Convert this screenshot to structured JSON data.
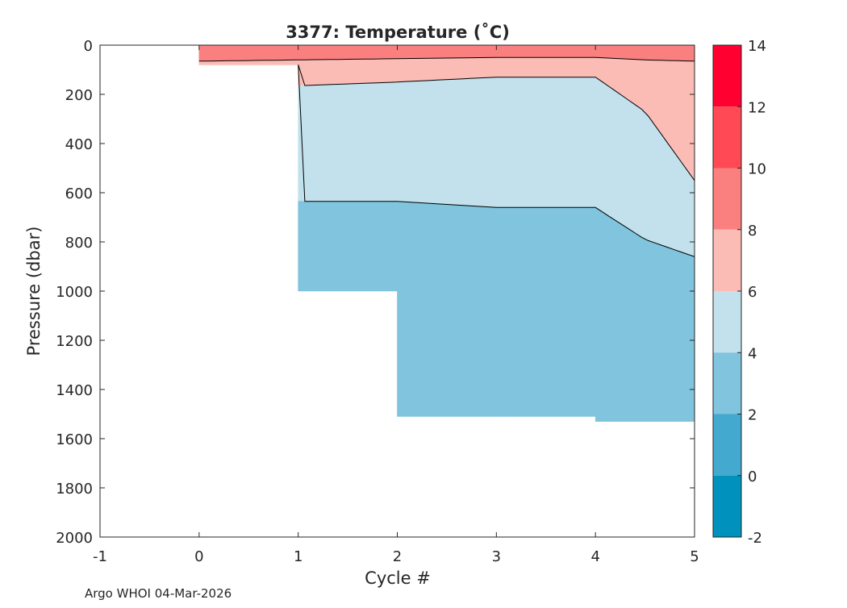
{
  "chart_data": {
    "type": "heatmap",
    "title": "3377:  Temperature (˚C)",
    "xlabel": "Cycle #",
    "ylabel": "Pressure (dbar)",
    "xlim": [
      -1,
      5
    ],
    "ylim": [
      0,
      2000
    ],
    "y_reversed": true,
    "xticks": [
      "-1",
      "0",
      "1",
      "2",
      "3",
      "4",
      "5"
    ],
    "yticks": [
      "0",
      "200",
      "400",
      "600",
      "800",
      "1000",
      "1200",
      "1400",
      "1600",
      "1800",
      "2000"
    ],
    "colorbar": {
      "ticks": [
        "14",
        "12",
        "10",
        "8",
        "6",
        "4",
        "2",
        "0",
        "-2"
      ],
      "bands": [
        {
          "from": 12,
          "to": 14,
          "color": "#ff0030"
        },
        {
          "from": 10,
          "to": 12,
          "color": "#ff4a56"
        },
        {
          "from": 8,
          "to": 10,
          "color": "#fa8080"
        },
        {
          "from": 6,
          "to": 8,
          "color": "#fcbcb6"
        },
        {
          "from": 4,
          "to": 6,
          "color": "#c2e1ec"
        },
        {
          "from": 2,
          "to": 4,
          "color": "#80c4de"
        },
        {
          "from": 0,
          "to": 2,
          "color": "#43a9ce"
        },
        {
          "from": -2,
          "to": 0,
          "color": "#0092bc"
        }
      ]
    },
    "profiles": [
      {
        "cycle": 0,
        "max_pressure": 80
      },
      {
        "cycle": 1,
        "max_pressure": 1000
      },
      {
        "cycle": 2,
        "max_pressure": 1510
      },
      {
        "cycle": 3,
        "max_pressure": 1510
      },
      {
        "cycle": 4,
        "max_pressure": 1530
      },
      {
        "cycle": 5,
        "max_pressure": 1530
      }
    ],
    "isotherms": [
      {
        "temp": 8,
        "cycles": [
          0,
          1,
          2,
          3,
          4,
          4.5,
          5
        ],
        "pressures": [
          65,
          60,
          55,
          50,
          50,
          60,
          65
        ]
      },
      {
        "temp": 6,
        "cycles": [
          1,
          2,
          3,
          4,
          4.5,
          5
        ],
        "pressures": [
          165,
          150,
          130,
          130,
          270,
          550
        ]
      },
      {
        "temp": 4,
        "cycles": [
          1,
          2,
          3,
          4,
          4.5,
          5
        ],
        "pressures": [
          635,
          635,
          660,
          660,
          790,
          860
        ]
      }
    ]
  },
  "footer": {
    "credit": "Argo WHOI 04-Mar-2026"
  }
}
